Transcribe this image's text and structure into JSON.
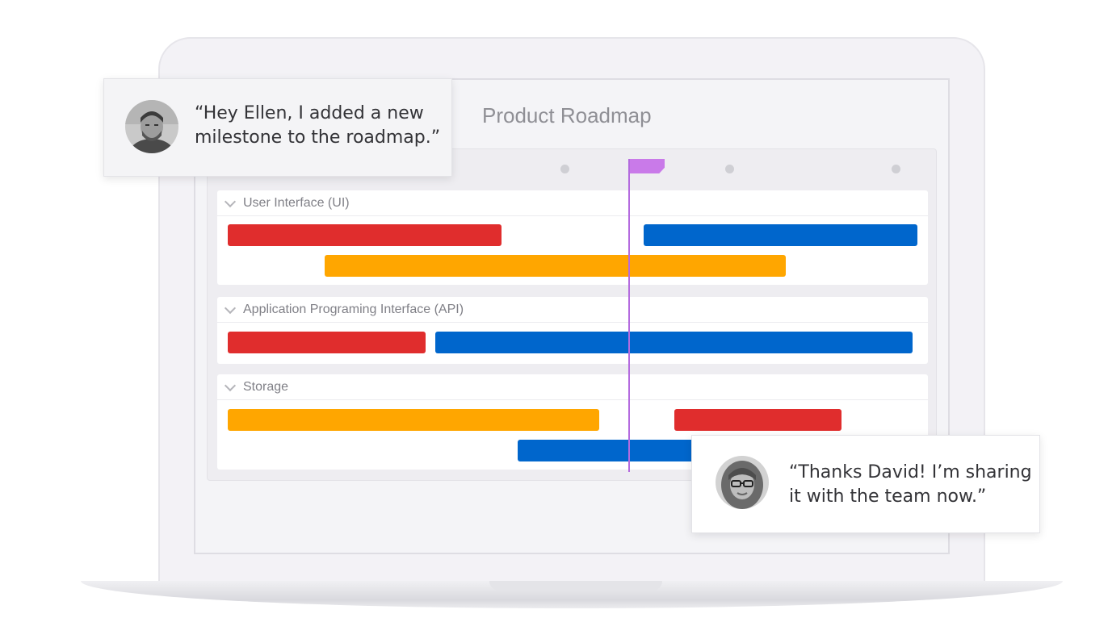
{
  "page": {
    "title": "Product Roadmap"
  },
  "roadmap": {
    "milestone_color": "#c97ae9",
    "sections": [
      {
        "label": "User Interface (UI)",
        "bars": [
          {
            "color": "red",
            "hex": "#e02d2d"
          },
          {
            "color": "blue",
            "hex": "#0066cc"
          },
          {
            "color": "orange",
            "hex": "#ffa600"
          }
        ]
      },
      {
        "label": "Application Programing Interface (API)",
        "bars": [
          {
            "color": "red",
            "hex": "#e02d2d"
          },
          {
            "color": "blue",
            "hex": "#0066cc"
          }
        ]
      },
      {
        "label": "Storage",
        "bars": [
          {
            "color": "orange",
            "hex": "#ffa600"
          },
          {
            "color": "red",
            "hex": "#e02d2d"
          },
          {
            "color": "blue",
            "hex": "#0066cc"
          }
        ]
      }
    ]
  },
  "chats": {
    "david": {
      "line1": "“Hey Ellen, I added a new",
      "line2": "milestone to the roadmap.”"
    },
    "ellen": {
      "line1": "“Thanks David! I’m sharing",
      "line2": "it with the team now.”"
    }
  }
}
